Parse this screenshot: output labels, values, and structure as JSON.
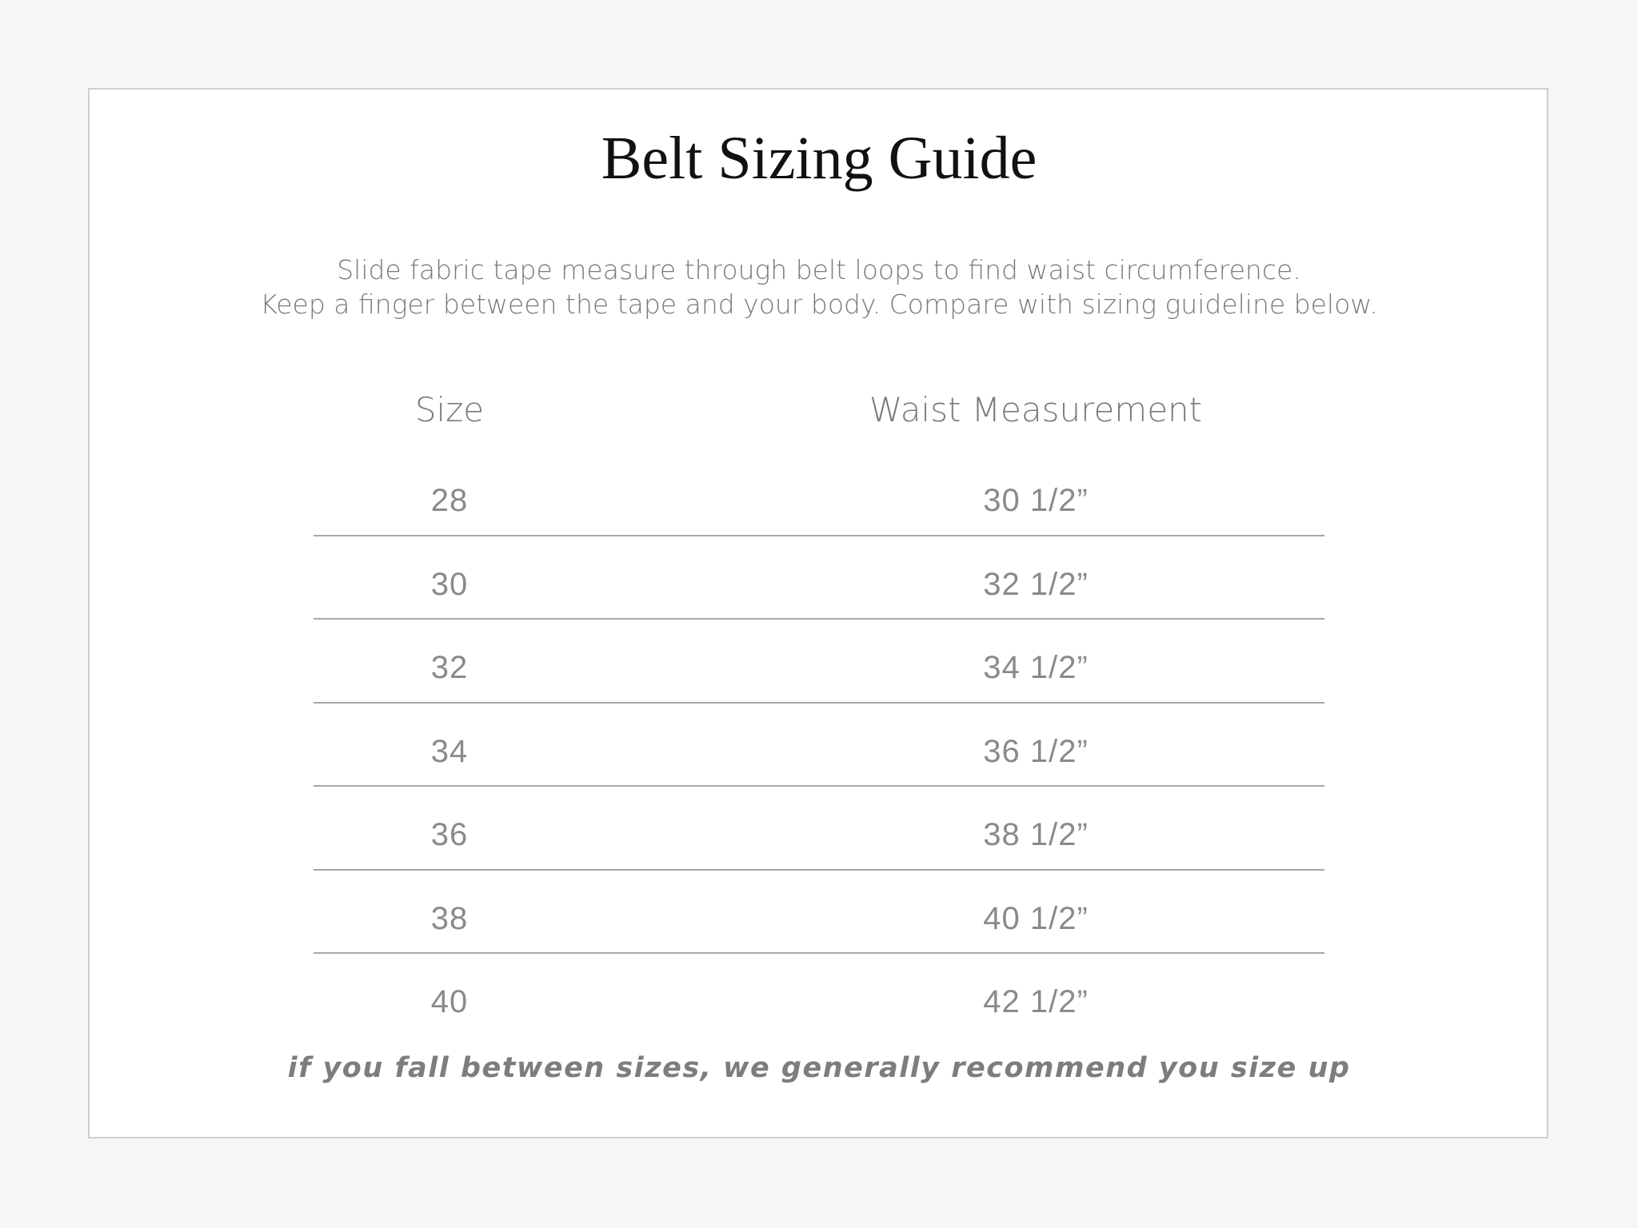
{
  "title": "Belt Sizing Guide",
  "subtitle": {
    "line1": "Slide fabric tape measure through belt loops to find waist circumference.",
    "line2": "Keep a finger between the tape and your body. Compare with sizing guideline below."
  },
  "table": {
    "headers": {
      "size": "Size",
      "waist": "Waist Measurement"
    },
    "rows": [
      {
        "size": "28",
        "waist": "30  1/2”"
      },
      {
        "size": "30",
        "waist": "32  1/2”"
      },
      {
        "size": "32",
        "waist": "34  1/2”"
      },
      {
        "size": "34",
        "waist": "36  1/2”"
      },
      {
        "size": "36",
        "waist": "38  1/2”"
      },
      {
        "size": "38",
        "waist": "40  1/2”"
      },
      {
        "size": "40",
        "waist": "42  1/2”"
      }
    ]
  },
  "footer": "if you fall between sizes, we generally recommend you size up"
}
